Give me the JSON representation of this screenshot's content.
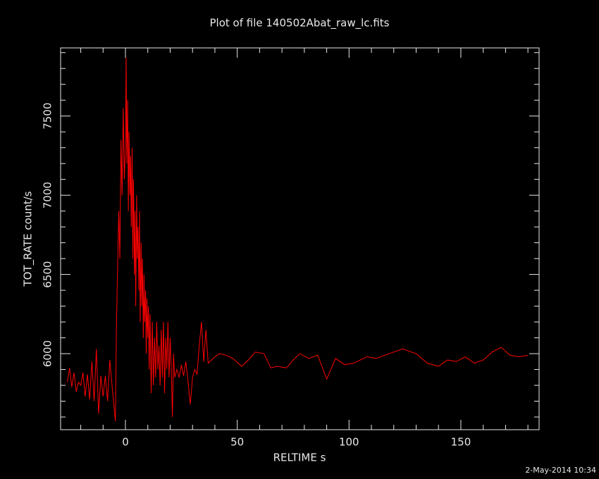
{
  "chart_data": {
    "type": "line",
    "title": "Plot of file 140502Abat_raw_lc.fits",
    "xlabel": "RELTIME  s",
    "ylabel": "TOT_RATE  count/s",
    "timestamp": "2-May-2014 10:34",
    "color": "#ff0000",
    "xlim": [
      -29,
      185
    ],
    "ylim": [
      5520,
      7930
    ],
    "xticks": [
      0,
      50,
      100,
      150
    ],
    "yticks": [
      6000,
      6500,
      7000,
      7500
    ],
    "xminorticks": [
      -20,
      -10,
      10,
      20,
      30,
      40,
      60,
      70,
      80,
      90,
      110,
      120,
      130,
      140,
      160,
      170,
      180
    ],
    "yminorticks": [
      5600,
      5700,
      5800,
      5900,
      6100,
      6200,
      6300,
      6400,
      6600,
      6700,
      6800,
      6900,
      7100,
      7200,
      7300,
      7400,
      7600,
      7700,
      7800,
      7900
    ],
    "x": [
      -26,
      -25,
      -24,
      -23,
      -22,
      -21,
      -20,
      -19,
      -18,
      -17,
      -16,
      -15,
      -14,
      -13,
      -12,
      -11,
      -10,
      -9,
      -8,
      -7,
      -6,
      -4.5,
      -4,
      -3,
      -2.5,
      -2,
      -1.5,
      -1,
      -0.5,
      0,
      0.3,
      0.6,
      1,
      1.3,
      1.6,
      2,
      2.3,
      2.6,
      3,
      3.3,
      3.6,
      4,
      4.3,
      4.6,
      5,
      5.3,
      5.6,
      6,
      6.3,
      6.6,
      7,
      7.3,
      7.6,
      8,
      8.3,
      8.6,
      9,
      9.3,
      9.6,
      10,
      10.3,
      10.6,
      11,
      11.5,
      12,
      12.5,
      13,
      13.5,
      14,
      14.5,
      15,
      15.5,
      16,
      16.5,
      17,
      17.5,
      18,
      18.5,
      19,
      19.5,
      20,
      20.5,
      21,
      21.5,
      22,
      23,
      24,
      25,
      26,
      27,
      28,
      29,
      30,
      31,
      32,
      33,
      34,
      35,
      36,
      37,
      40,
      42,
      45,
      48,
      52,
      55,
      58,
      62,
      65,
      68,
      72,
      75,
      78,
      82,
      86,
      90,
      94,
      98,
      102,
      108,
      112,
      118,
      124,
      130,
      135,
      140,
      144,
      148,
      152,
      156,
      160,
      164,
      168,
      172,
      176,
      180
    ],
    "values": [
      5820,
      5910,
      5790,
      5880,
      5760,
      5820,
      5800,
      5880,
      5730,
      5870,
      5710,
      5950,
      5700,
      6030,
      5620,
      5860,
      5730,
      5860,
      5700,
      5960,
      5800,
      5573,
      6200,
      6900,
      6600,
      7350,
      7000,
      7550,
      7100,
      7300,
      7870,
      7200,
      7600,
      6900,
      7400,
      7000,
      7250,
      6800,
      7300,
      6600,
      7100,
      6500,
      6900,
      6300,
      7000,
      6600,
      6800,
      6400,
      6900,
      6200,
      6700,
      6300,
      6600,
      6100,
      6500,
      6200,
      6400,
      6000,
      6350,
      6100,
      6300,
      5900,
      6250,
      5750,
      6200,
      5800,
      6100,
      5850,
      6200,
      5900,
      6050,
      5800,
      6150,
      5850,
      6200,
      5750,
      6100,
      5900,
      6200,
      5850,
      6100,
      5900,
      5600,
      6000,
      5850,
      5900,
      5850,
      5930,
      5860,
      5950,
      5820,
      5680,
      5850,
      5900,
      5870,
      6050,
      6200,
      5950,
      6150,
      5940,
      5980,
      6000,
      5990,
      5970,
      5920,
      5960,
      6010,
      6000,
      5910,
      5920,
      5910,
      5960,
      6000,
      5970,
      5990,
      5840,
      5970,
      5930,
      5940,
      5980,
      5970,
      6000,
      6030,
      6000,
      5940,
      5920,
      5960,
      5950,
      5980,
      5940,
      5960,
      6010,
      6040,
      5990,
      5980,
      5990
    ]
  }
}
